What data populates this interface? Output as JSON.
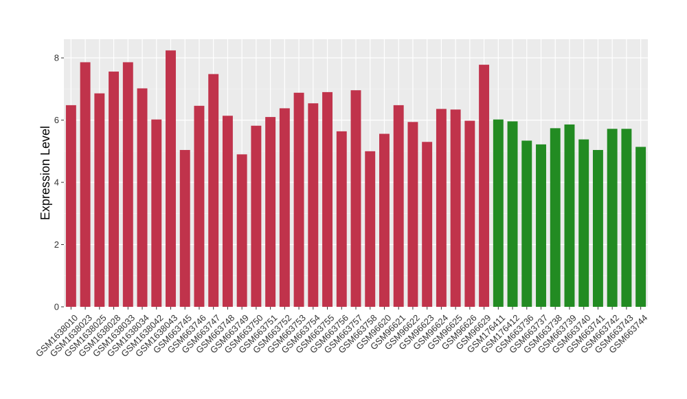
{
  "chart_data": {
    "type": "bar",
    "title": "",
    "xlabel": "",
    "ylabel": "Expression Level",
    "ylim": [
      0,
      8.6
    ],
    "yticks": [
      0,
      2,
      4,
      6,
      8
    ],
    "grid": true,
    "legend": "none",
    "series_colors": {
      "red": "#c0334b",
      "green": "#228b22"
    },
    "panel_background": "#ebebeb",
    "categories": [
      "GSM1638010",
      "GSM1638023",
      "GSM1638025",
      "GSM1638028",
      "GSM1638033",
      "GSM1638034",
      "GSM1638042",
      "GSM1638043",
      "GSM663745",
      "GSM663746",
      "GSM663747",
      "GSM663748",
      "GSM663749",
      "GSM663750",
      "GSM663751",
      "GSM663752",
      "GSM663753",
      "GSM663754",
      "GSM663755",
      "GSM663756",
      "GSM663757",
      "GSM663758",
      "GSM96620",
      "GSM96621",
      "GSM96622",
      "GSM96623",
      "GSM96624",
      "GSM96625",
      "GSM96626",
      "GSM96629",
      "GSM176411",
      "GSM176412",
      "GSM663736",
      "GSM663737",
      "GSM663738",
      "GSM663739",
      "GSM663740",
      "GSM663741",
      "GSM663742",
      "GSM663743",
      "GSM663744"
    ],
    "values": [
      6.48,
      7.86,
      6.86,
      7.56,
      7.86,
      7.02,
      6.02,
      8.24,
      5.04,
      6.46,
      7.48,
      6.14,
      4.9,
      5.82,
      6.1,
      6.38,
      6.88,
      6.54,
      6.9,
      5.64,
      6.96,
      5.0,
      5.56,
      6.48,
      5.94,
      5.3,
      6.36,
      6.34,
      5.98,
      7.78,
      6.02,
      5.96,
      5.34,
      5.22,
      5.74,
      5.86,
      5.38,
      5.04,
      5.72,
      5.72,
      5.14
    ],
    "colors": [
      "red",
      "red",
      "red",
      "red",
      "red",
      "red",
      "red",
      "red",
      "red",
      "red",
      "red",
      "red",
      "red",
      "red",
      "red",
      "red",
      "red",
      "red",
      "red",
      "red",
      "red",
      "red",
      "red",
      "red",
      "red",
      "red",
      "red",
      "red",
      "red",
      "red",
      "green",
      "green",
      "green",
      "green",
      "green",
      "green",
      "green",
      "green",
      "green",
      "green",
      "green"
    ]
  }
}
